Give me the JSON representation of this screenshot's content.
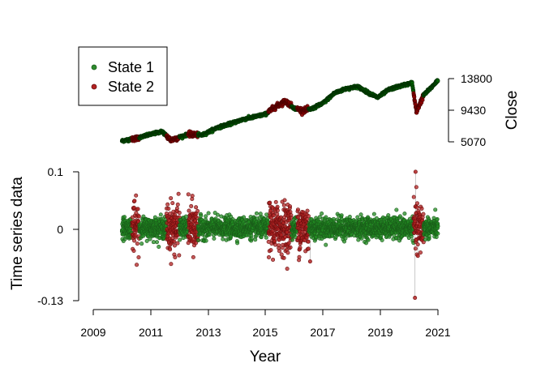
{
  "chart_data": [
    {
      "type": "scatter",
      "panel": "price",
      "ylabel": "Close",
      "y_ticks": [
        5070,
        9430,
        13800
      ],
      "ylim": [
        5070,
        13800
      ],
      "xlim": [
        2009,
        2021
      ],
      "colors": {
        "State 1": "#006400",
        "State 2": "#8B0000"
      },
      "legend": {
        "placement": "top-left",
        "entries": [
          "State 1",
          "State 2"
        ]
      },
      "trend_anchors": [
        [
          2010.0,
          5200
        ],
        [
          2010.5,
          5550
        ],
        [
          2011.0,
          6100
        ],
        [
          2011.4,
          6500
        ],
        [
          2011.7,
          5300
        ],
        [
          2012.0,
          5700
        ],
        [
          2012.3,
          6100
        ],
        [
          2012.8,
          6000
        ],
        [
          2013.3,
          7000
        ],
        [
          2013.8,
          7600
        ],
        [
          2014.2,
          8150
        ],
        [
          2014.7,
          8600
        ],
        [
          2015.0,
          8900
        ],
        [
          2015.3,
          9800
        ],
        [
          2015.7,
          10700
        ],
        [
          2016.0,
          9700
        ],
        [
          2016.3,
          9400
        ],
        [
          2016.6,
          9600
        ],
        [
          2017.0,
          10400
        ],
        [
          2017.4,
          11800
        ],
        [
          2017.8,
          12400
        ],
        [
          2018.2,
          12700
        ],
        [
          2018.6,
          11800
        ],
        [
          2018.9,
          11200
        ],
        [
          2019.3,
          12300
        ],
        [
          2019.8,
          12900
        ],
        [
          2020.1,
          13200
        ],
        [
          2020.25,
          9200
        ],
        [
          2020.5,
          11500
        ],
        [
          2020.8,
          12700
        ],
        [
          2021.0,
          13600
        ]
      ],
      "state2_periods": [
        [
          2010.35,
          2010.6
        ],
        [
          2011.55,
          2012.0
        ],
        [
          2012.3,
          2012.65
        ],
        [
          2015.1,
          2015.9
        ],
        [
          2016.1,
          2016.5
        ],
        [
          2020.15,
          2020.5
        ]
      ]
    },
    {
      "type": "scatter",
      "panel": "returns",
      "xlabel": "Year",
      "ylabel": "Time series data",
      "x_ticks": [
        2009,
        2011,
        2013,
        2015,
        2017,
        2019,
        2021
      ],
      "y_ticks": [
        -0.13,
        0,
        0.1
      ],
      "y_tick_labels": [
        "-0.13",
        "0",
        "0.1"
      ],
      "ylim": [
        -0.13,
        0.1
      ],
      "xlim": [
        2009,
        2021
      ],
      "colors": {
        "State 1": "#228B22",
        "State 2": "#B22222"
      },
      "state1_spread": 0.009,
      "state2_spread": 0.022,
      "extreme_points": [
        [
          2020.2,
          -0.125
        ],
        [
          2020.22,
          0.1
        ],
        [
          2016.55,
          -0.06
        ],
        [
          2020.3,
          -0.05
        ]
      ]
    }
  ],
  "legend": {
    "items": [
      {
        "label": "State 1",
        "color": "#2E8B2E"
      },
      {
        "label": "State 2",
        "color": "#B22222"
      }
    ]
  },
  "axes": {
    "close_ticks": [
      "13800",
      "9430",
      "5070"
    ],
    "close_title": "Close",
    "returns_ticks": [
      "0.1",
      "0",
      "-0.13"
    ],
    "returns_title": "Time series data",
    "year_ticks": [
      "2009",
      "2011",
      "2013",
      "2015",
      "2017",
      "2019",
      "2021"
    ],
    "year_title": "Year"
  }
}
